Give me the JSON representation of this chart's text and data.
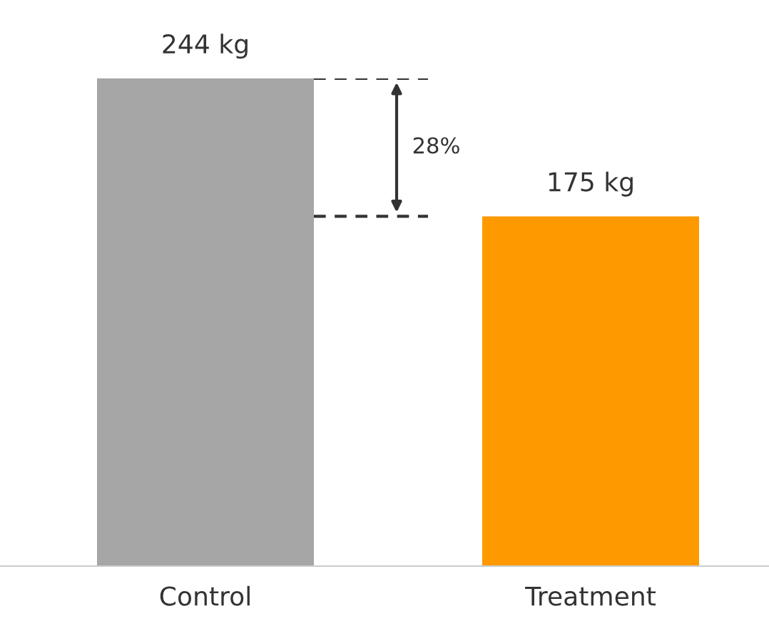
{
  "chart_data": {
    "type": "bar",
    "categories": [
      "Control",
      "Treatment"
    ],
    "values": [
      244,
      175
    ],
    "colors": [
      "#a6a6a6",
      "#ff9900"
    ],
    "value_labels": [
      "244 kg",
      "175 kg"
    ],
    "annotations": [
      "28%"
    ],
    "grid": false,
    "legend": false
  }
}
